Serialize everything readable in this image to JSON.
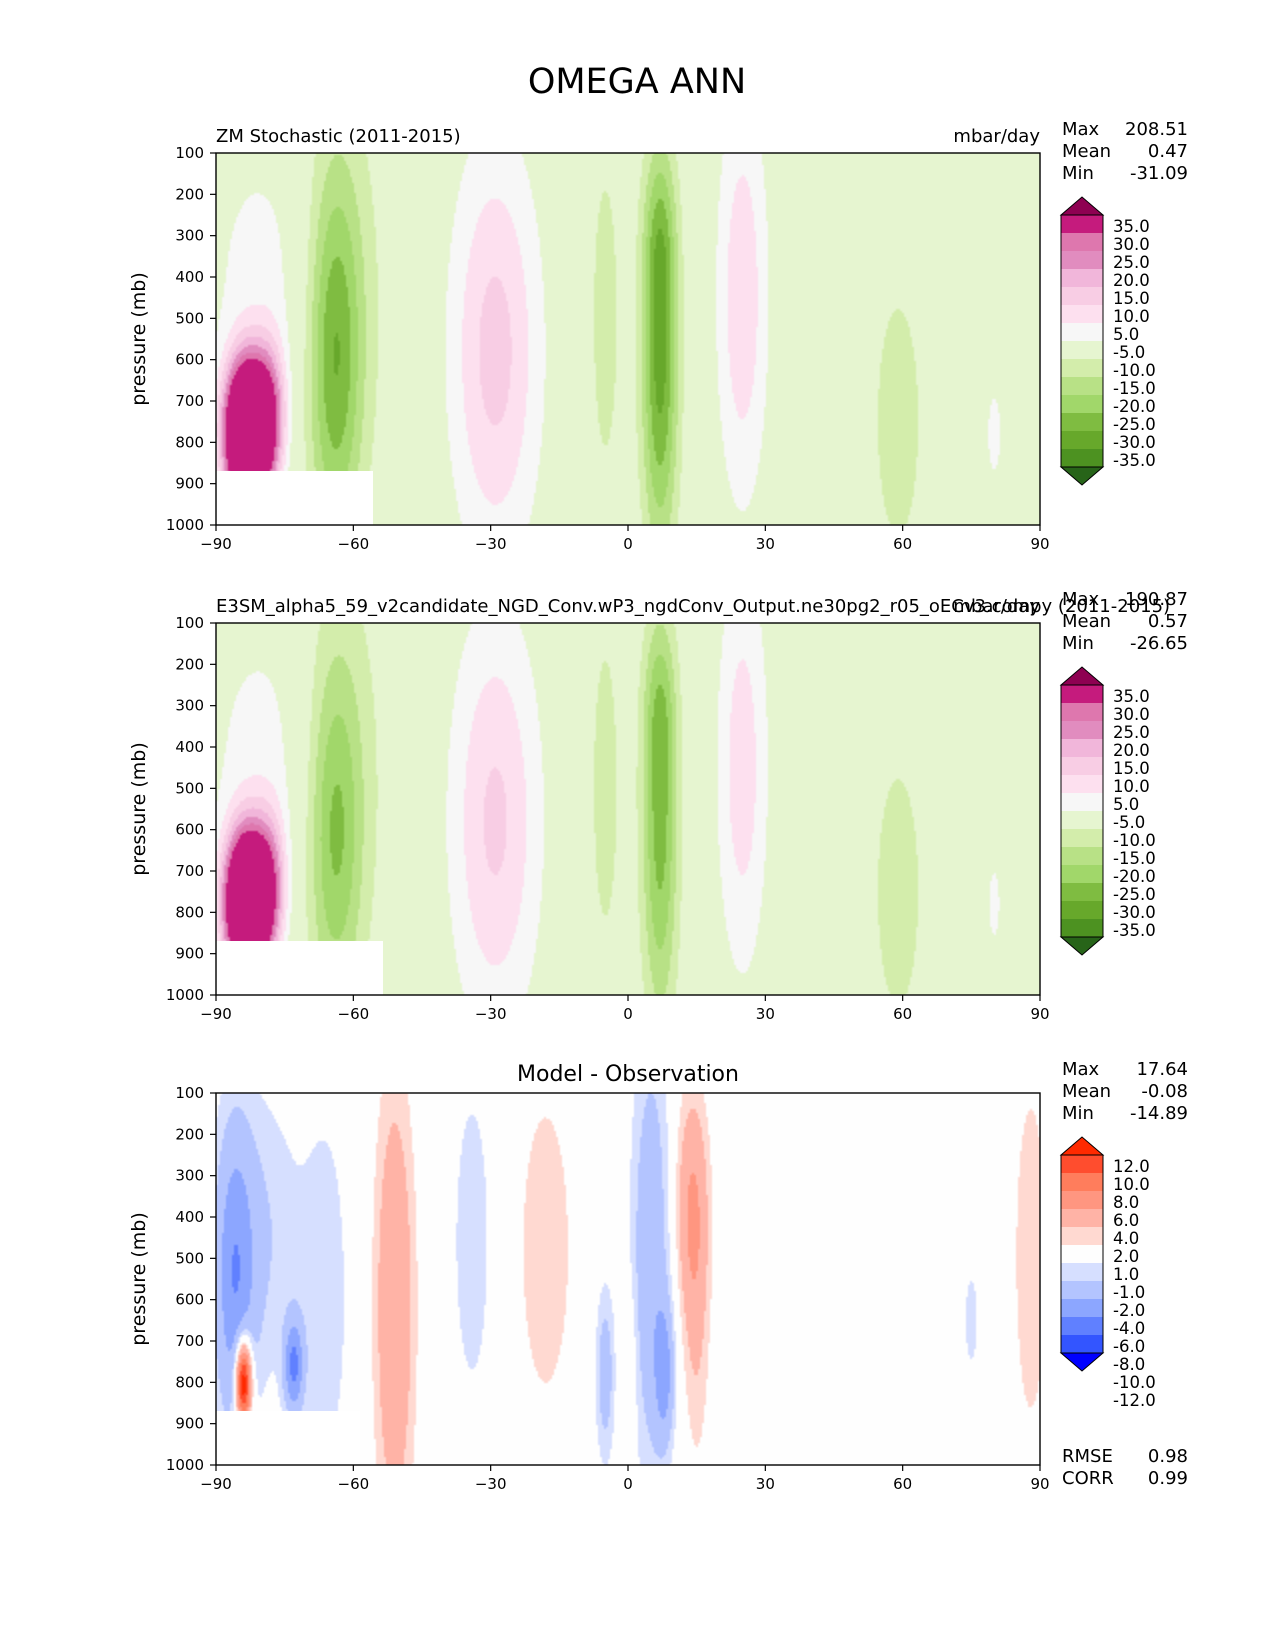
{
  "figure": {
    "title": "OMEGA ANN"
  },
  "palettes": {
    "diverging_pg": [
      "#276419",
      "#4d9221",
      "#67a82b",
      "#7fbc41",
      "#a1d76a",
      "#b8e186",
      "#d3edab",
      "#e6f5d0",
      "#f7f7f7",
      "#fde0ef",
      "#f8cde4",
      "#f1b6da",
      "#e18cbf",
      "#de77ae",
      "#c51b7d",
      "#8e0152"
    ],
    "diverging_br": [
      "#0000ff",
      "#3355ff",
      "#6080ff",
      "#8ca6ff",
      "#b3c4ff",
      "#d6dfff",
      "#fefefe",
      "#ffd9d1",
      "#ffb3a6",
      "#ff9680",
      "#ff7d5c",
      "#ff4d2e",
      "#ff2a00"
    ]
  },
  "chart_data": [
    {
      "id": "test",
      "type": "contour",
      "title_left": "ZM Stochastic (2011-2015)",
      "title_right": "mbar/day",
      "ylabel": "pressure (mb)",
      "x_ticks": [
        "−90",
        "−60",
        "−30",
        "0",
        "30",
        "60",
        "90"
      ],
      "y_ticks": [
        "100",
        "200",
        "300",
        "400",
        "500",
        "600",
        "700",
        "800",
        "900",
        "1000"
      ],
      "xlim": [
        -90,
        90
      ],
      "ylim": [
        1000,
        100
      ],
      "stats": {
        "Max": "208.51",
        "Mean": "0.47",
        "Min": "-31.09"
      },
      "colorbar": [
        "35.0",
        "30.0",
        "25.0",
        "20.0",
        "15.0",
        "10.0",
        "5.0",
        "-5.0",
        "-10.0",
        "-15.0",
        "-20.0",
        "-25.0",
        "-30.0",
        "-35.0"
      ],
      "palette": "diverging_pg",
      "levels": [
        -35,
        -30,
        -25,
        -20,
        -15,
        -10,
        -5,
        5,
        10,
        15,
        20,
        25,
        30,
        35
      ],
      "features": [
        {
          "lat": -83,
          "p": 780,
          "wlat": 3.5,
          "wp": 120,
          "amp": 90
        },
        {
          "lat": -78,
          "p": 720,
          "wlat": 2.5,
          "wp": 120,
          "amp": 18
        },
        {
          "lat": -80,
          "p": 400,
          "wlat": 9,
          "wp": 260,
          "amp": 7
        },
        {
          "lat": -64,
          "p": 600,
          "wlat": 4,
          "wp": 320,
          "amp": -20
        },
        {
          "lat": -62,
          "p": 450,
          "wlat": 7,
          "wp": 400,
          "amp": -7
        },
        {
          "lat": -29,
          "p": 580,
          "wlat": 7,
          "wp": 360,
          "amp": 17
        },
        {
          "lat": -5,
          "p": 500,
          "wlat": 3,
          "wp": 380,
          "amp": -7
        },
        {
          "lat": 7,
          "p": 600,
          "wlat": 2.8,
          "wp": 330,
          "amp": -27
        },
        {
          "lat": 7,
          "p": 300,
          "wlat": 2.5,
          "wp": 140,
          "amp": -8
        },
        {
          "lat": 25,
          "p": 450,
          "wlat": 4,
          "wp": 360,
          "amp": 14
        },
        {
          "lat": 59,
          "p": 750,
          "wlat": 4.5,
          "wp": 280,
          "amp": -8
        },
        {
          "lat": 80,
          "p": 780,
          "wlat": 1.3,
          "wp": 90,
          "amp": 8
        }
      ]
    },
    {
      "id": "ref",
      "type": "contour",
      "title_left": "E3SM_alpha5_59_v2candidate_NGD_Conv.wP3_ngdConv_Output.ne30pg2_r05_oECv3.compy (2011-2015)",
      "title_right": "mbar/day",
      "ylabel": "pressure (mb)",
      "x_ticks": [
        "−90",
        "−60",
        "−30",
        "0",
        "30",
        "60",
        "90"
      ],
      "y_ticks": [
        "100",
        "200",
        "300",
        "400",
        "500",
        "600",
        "700",
        "800",
        "900",
        "1000"
      ],
      "xlim": [
        -90,
        90
      ],
      "ylim": [
        1000,
        100
      ],
      "stats": {
        "Max": "190.87",
        "Mean": "0.57",
        "Min": "-26.65"
      },
      "colorbar": [
        "35.0",
        "30.0",
        "25.0",
        "20.0",
        "15.0",
        "10.0",
        "5.0",
        "-5.0",
        "-10.0",
        "-15.0",
        "-20.0",
        "-25.0",
        "-30.0",
        "-35.0"
      ],
      "palette": "diverging_pg",
      "levels": [
        -35,
        -30,
        -25,
        -20,
        -15,
        -10,
        -5,
        5,
        10,
        15,
        20,
        25,
        30,
        35
      ],
      "features": [
        {
          "lat": -83,
          "p": 780,
          "wlat": 3.5,
          "wp": 120,
          "amp": 85
        },
        {
          "lat": -78,
          "p": 720,
          "wlat": 2.5,
          "wp": 120,
          "amp": 16
        },
        {
          "lat": -80,
          "p": 420,
          "wlat": 9,
          "wp": 260,
          "amp": 7
        },
        {
          "lat": -64,
          "p": 620,
          "wlat": 4,
          "wp": 300,
          "amp": -16
        },
        {
          "lat": -62,
          "p": 450,
          "wlat": 7,
          "wp": 400,
          "amp": -7
        },
        {
          "lat": -29,
          "p": 580,
          "wlat": 7,
          "wp": 360,
          "amp": 16
        },
        {
          "lat": -5,
          "p": 500,
          "wlat": 3,
          "wp": 380,
          "amp": -7
        },
        {
          "lat": 7,
          "p": 600,
          "wlat": 2.8,
          "wp": 330,
          "amp": -22
        },
        {
          "lat": 7,
          "p": 300,
          "wlat": 2.5,
          "wp": 140,
          "amp": -8
        },
        {
          "lat": 25,
          "p": 450,
          "wlat": 4,
          "wp": 360,
          "amp": 13
        },
        {
          "lat": 59,
          "p": 750,
          "wlat": 4.5,
          "wp": 280,
          "amp": -8
        },
        {
          "lat": 80,
          "p": 780,
          "wlat": 1.3,
          "wp": 90,
          "amp": 7
        }
      ]
    },
    {
      "id": "diff",
      "type": "contour",
      "title_center": "Model - Observation",
      "ylabel": "pressure (mb)",
      "x_ticks": [
        "−90",
        "−60",
        "−30",
        "0",
        "30",
        "60",
        "90"
      ],
      "y_ticks": [
        "100",
        "200",
        "300",
        "400",
        "500",
        "600",
        "700",
        "800",
        "900",
        "1000"
      ],
      "xlim": [
        -90,
        90
      ],
      "ylim": [
        1000,
        100
      ],
      "stats": {
        "Max": "17.64",
        "Mean": "-0.08",
        "Min": "-14.89"
      },
      "colorbar": [
        "12.0",
        "10.0",
        "8.0",
        "6.0",
        "4.0",
        "2.0",
        "1.0",
        "-1.0",
        "-2.0",
        "-4.0",
        "-6.0",
        "-8.0",
        "-10.0",
        "-12.0"
      ],
      "palette": "diverging_br",
      "levels": [
        -12,
        -10,
        -8,
        -6,
        -4,
        -2,
        -1,
        1,
        2,
        4,
        6,
        8,
        10,
        12
      ],
      "metrics": {
        "RMSE": "0.98",
        "CORR": "0.99"
      },
      "features": [
        {
          "lat": -86,
          "p": 550,
          "wlat": 3,
          "wp": 260,
          "amp": -5
        },
        {
          "lat": -80,
          "p": 450,
          "wlat": 6,
          "wp": 260,
          "amp": -2
        },
        {
          "lat": -84,
          "p": 800,
          "wlat": 1.2,
          "wp": 70,
          "amp": 14
        },
        {
          "lat": -73,
          "p": 760,
          "wlat": 1.5,
          "wp": 80,
          "amp": -6
        },
        {
          "lat": -66,
          "p": 600,
          "wlat": 4,
          "wp": 360,
          "amp": -1.6
        },
        {
          "lat": -51,
          "p": 620,
          "wlat": 3,
          "wp": 380,
          "amp": 4
        },
        {
          "lat": -34,
          "p": 460,
          "wlat": 3.5,
          "wp": 320,
          "amp": -1.6
        },
        {
          "lat": -18,
          "p": 480,
          "wlat": 5,
          "wp": 330,
          "amp": 1.6
        },
        {
          "lat": -5,
          "p": 780,
          "wlat": 1.5,
          "wp": 150,
          "amp": -3
        },
        {
          "lat": 0,
          "p": 780,
          "wlat": 1.2,
          "wp": 140,
          "amp": 1.6
        },
        {
          "lat": 5,
          "p": 500,
          "wlat": 3,
          "wp": 380,
          "amp": -3.5
        },
        {
          "lat": 8,
          "p": 780,
          "wlat": 1.5,
          "wp": 120,
          "amp": -4
        },
        {
          "lat": 14,
          "p": 380,
          "wlat": 2.5,
          "wp": 200,
          "amp": 4
        },
        {
          "lat": 15,
          "p": 700,
          "wlat": 2,
          "wp": 250,
          "amp": 1.6
        },
        {
          "lat": 75,
          "p": 650,
          "wlat": 1,
          "wp": 80,
          "amp": -2
        },
        {
          "lat": 88,
          "p": 500,
          "wlat": 3,
          "wp": 350,
          "amp": 1.7
        }
      ]
    }
  ]
}
